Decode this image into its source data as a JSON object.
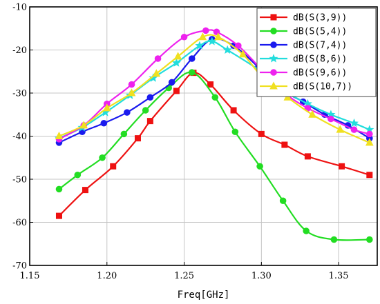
{
  "chart_data": {
    "type": "line",
    "xlabel": "Freq[GHz]",
    "ylabel": "",
    "xlim": [
      1.15,
      1.375
    ],
    "ylim": [
      -70,
      -10
    ],
    "xticks": [
      "1.15",
      "1.20",
      "1.25",
      "1.30",
      "1.35"
    ],
    "xtick_values": [
      1.15,
      1.2,
      1.25,
      1.3,
      1.35
    ],
    "yticks": [
      "-10",
      "-20",
      "-30",
      "-40",
      "-50",
      "-60",
      "-70"
    ],
    "ytick_values": [
      -10,
      -20,
      -30,
      -40,
      -50,
      -60,
      -70
    ],
    "grid": true,
    "legend_position": "top-right",
    "series": [
      {
        "name": "dB(S(3,9))",
        "color": "#ee1111",
        "marker": "square",
        "x": [
          1.169,
          1.186,
          1.204,
          1.22,
          1.228,
          1.245,
          1.256,
          1.267,
          1.282,
          1.3,
          1.315,
          1.33,
          1.352,
          1.37
        ],
        "y": [
          -58.5,
          -52.5,
          -47.0,
          -40.5,
          -36.5,
          -29.5,
          -25.3,
          -28.0,
          -34.0,
          -39.5,
          -42.0,
          -44.7,
          -47.0,
          -49.0
        ]
      },
      {
        "name": "dB(S(5,4))",
        "color": "#22dd22",
        "marker": "circle",
        "x": [
          1.169,
          1.181,
          1.197,
          1.211,
          1.225,
          1.24,
          1.255,
          1.27,
          1.283,
          1.299,
          1.314,
          1.329,
          1.347,
          1.37
        ],
        "y": [
          -52.3,
          -49.0,
          -45.0,
          -39.5,
          -34.0,
          -28.8,
          -25.2,
          -31.0,
          -39.0,
          -47.0,
          -55.0,
          -62.0,
          -64.0,
          -64.0
        ]
      },
      {
        "name": "dB(S(7,4))",
        "color": "#1a1aee",
        "marker": "circle",
        "x": [
          1.169,
          1.184,
          1.198,
          1.213,
          1.228,
          1.242,
          1.255,
          1.268,
          1.282,
          1.298,
          1.312,
          1.327,
          1.341,
          1.356,
          1.37
        ],
        "y": [
          -41.5,
          -39.0,
          -37.0,
          -34.5,
          -31.0,
          -27.5,
          -22.0,
          -17.5,
          -19.0,
          -24.0,
          -29.0,
          -32.0,
          -35.0,
          -37.5,
          -40.5
        ]
      },
      {
        "name": "dB(S(8,6))",
        "color": "#22dddd",
        "marker": "star",
        "x": [
          1.169,
          1.184,
          1.199,
          1.215,
          1.23,
          1.245,
          1.26,
          1.268,
          1.278,
          1.3,
          1.315,
          1.33,
          1.345,
          1.36,
          1.37
        ],
        "y": [
          -40.5,
          -38.0,
          -34.5,
          -30.5,
          -26.5,
          -23.0,
          -19.0,
          -18.0,
          -20.0,
          -25.0,
          -29.5,
          -32.5,
          -35.0,
          -37.0,
          -38.5
        ]
      },
      {
        "name": "dB(S(9,6))",
        "color": "#ee22ee",
        "marker": "circle",
        "x": [
          1.169,
          1.185,
          1.2,
          1.216,
          1.233,
          1.25,
          1.264,
          1.271,
          1.285,
          1.3,
          1.315,
          1.33,
          1.345,
          1.36,
          1.37
        ],
        "y": [
          -40.7,
          -37.5,
          -32.5,
          -28.0,
          -22.0,
          -17.0,
          -15.5,
          -15.8,
          -19.0,
          -24.5,
          -30.0,
          -33.5,
          -36.0,
          -38.5,
          -39.5
        ]
      },
      {
        "name": "dB(S(10,7))",
        "color": "#f0e020",
        "marker": "triangle",
        "x": [
          1.169,
          1.185,
          1.2,
          1.216,
          1.232,
          1.246,
          1.262,
          1.272,
          1.288,
          1.3,
          1.317,
          1.333,
          1.351,
          1.37
        ],
        "y": [
          -40.0,
          -37.5,
          -33.5,
          -30.0,
          -25.5,
          -21.5,
          -17.0,
          -17.0,
          -21.0,
          -26.0,
          -31.0,
          -35.0,
          -38.5,
          -41.5
        ]
      }
    ]
  }
}
